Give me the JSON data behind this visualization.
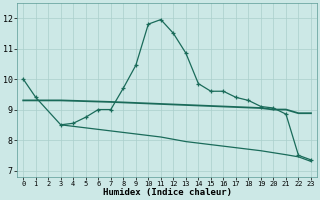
{
  "xlabel": "Humidex (Indice chaleur)",
  "background_color": "#cce8e6",
  "grid_color": "#aacfcc",
  "line_color": "#1a6b5a",
  "xlim": [
    -0.5,
    23.5
  ],
  "ylim": [
    6.8,
    12.5
  ],
  "x_ticks": [
    0,
    1,
    2,
    3,
    4,
    5,
    6,
    7,
    8,
    9,
    10,
    11,
    12,
    13,
    14,
    15,
    16,
    17,
    18,
    19,
    20,
    21,
    22,
    23
  ],
  "y_ticks": [
    7,
    8,
    9,
    10,
    11,
    12
  ],
  "line1_x": [
    0,
    1,
    3,
    4,
    5,
    6,
    7,
    8,
    9,
    10,
    11,
    12,
    13,
    14,
    15,
    16,
    17,
    18,
    19,
    20,
    21,
    22,
    23
  ],
  "line1_y": [
    10.0,
    9.4,
    8.5,
    8.55,
    8.75,
    9.0,
    9.0,
    9.7,
    10.45,
    11.8,
    11.95,
    11.5,
    10.85,
    9.85,
    9.6,
    9.6,
    9.4,
    9.3,
    9.1,
    9.05,
    8.85,
    7.5,
    7.35
  ],
  "line2_x": [
    0,
    3,
    7,
    10,
    13,
    16,
    19,
    20,
    21,
    22,
    23
  ],
  "line2_y": [
    9.3,
    9.3,
    9.25,
    9.2,
    9.15,
    9.1,
    9.05,
    9.0,
    9.0,
    8.88,
    8.88
  ],
  "line3_x": [
    3,
    5,
    7,
    9,
    11,
    13,
    15,
    17,
    19,
    21,
    22,
    23
  ],
  "line3_y": [
    8.5,
    8.4,
    8.3,
    8.2,
    8.1,
    7.95,
    7.85,
    7.75,
    7.65,
    7.52,
    7.45,
    7.3
  ]
}
